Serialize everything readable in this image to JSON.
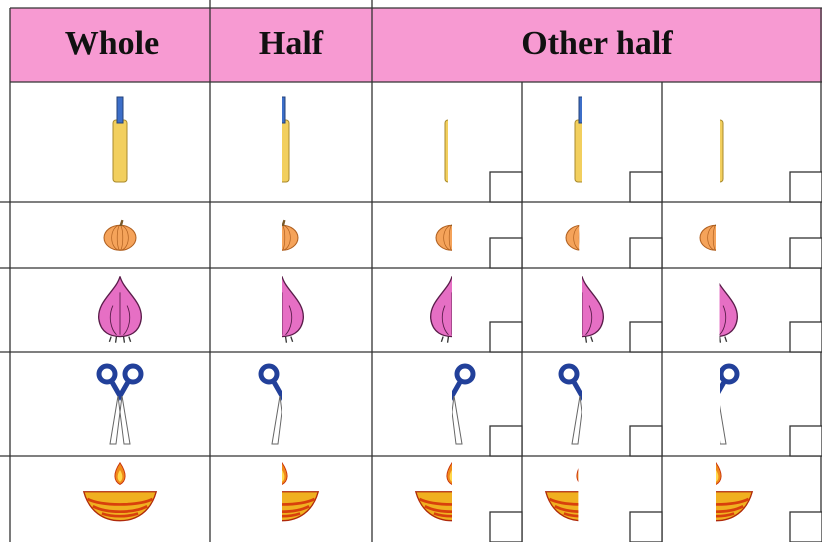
{
  "table": {
    "headers": [
      "Whole",
      "Half",
      "Other half"
    ]
  }
}
